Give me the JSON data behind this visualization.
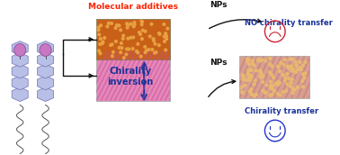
{
  "background_color": "#ffffff",
  "mol_additive_label": "Molecular additives",
  "mol_additive_color": "#ff2200",
  "NPs_label": "NPs",
  "NPs_color": "#111111",
  "chirality_inversion_label": "Chirality\ninversion",
  "chirality_inversion_color": "#1a3399",
  "chirality_transfer_label": "Chirality transfer",
  "chirality_transfer_color": "#1a3399",
  "no_chirality_transfer_label": "NO chirality transfer",
  "no_chirality_transfer_color": "#1a3399",
  "arrow_color": "#111111",
  "double_arrow_color": "#1a3399",
  "pink_base": "#e888b8",
  "pink_stripe": "#c050a0",
  "orange_base": "#c86018",
  "orange_dot": "#e8a040",
  "nanorod_base": "#d8a090",
  "nanorod_dot": "#e8b870",
  "nanorod_stripe": "#c06878",
  "smiley_color": "#2233cc",
  "sad_color": "#cc2233",
  "hex_fill": "#b8c0e8",
  "hex_edge": "#7070b0",
  "mol_top_fill": "#c878c0",
  "mol_top_edge": "#804090"
}
